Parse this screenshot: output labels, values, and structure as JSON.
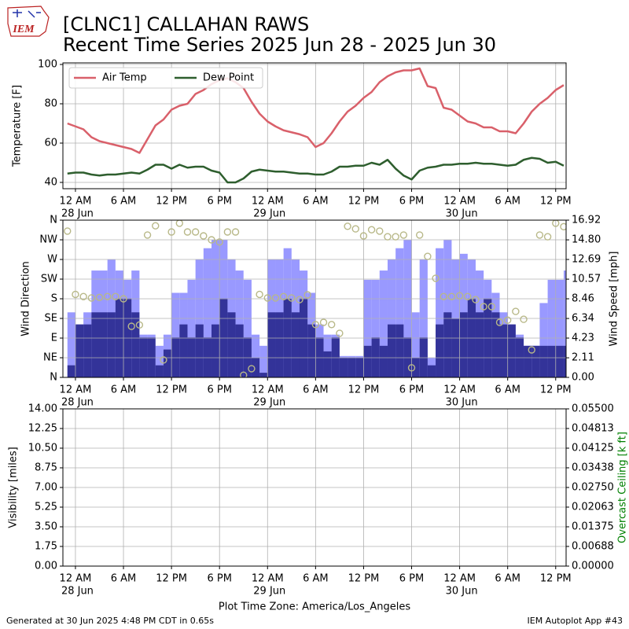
{
  "header": {
    "logo_text": "IEM",
    "title": "[CLNC1] CALLAHAN RAWS",
    "subtitle": "Recent Time Series 2025 Jun 28 - 2025 Jun 30"
  },
  "chart_data": [
    {
      "type": "line",
      "ylabel": "Temperature [F]",
      "grid": true,
      "legend": "upper left",
      "xlim": [
        "2025-06-27 22:26",
        "2025-06-30 13:18"
      ],
      "xticks": [
        {
          "value": "2025-06-28 00:00",
          "label": "12 AM"
        },
        {
          "value": "2025-06-28 06:00",
          "label": "6 AM"
        },
        {
          "value": "2025-06-28 12:00",
          "label": "12 PM"
        },
        {
          "value": "2025-06-28 18:00",
          "label": "6 PM"
        },
        {
          "value": "2025-06-29 00:00",
          "label": "12 AM"
        },
        {
          "value": "2025-06-29 06:00",
          "label": "6 AM"
        },
        {
          "value": "2025-06-29 12:00",
          "label": "12 PM"
        },
        {
          "value": "2025-06-29 18:00",
          "label": "6 PM"
        },
        {
          "value": "2025-06-30 00:00",
          "label": "12 AM"
        },
        {
          "value": "2025-06-30 06:00",
          "label": "6 AM"
        },
        {
          "value": "2025-06-30 12:00",
          "label": "12 PM"
        }
      ],
      "xtick_dates": [
        {
          "value": "2025-06-28 00:00",
          "label": "28 Jun"
        },
        {
          "value": "2025-06-29 00:00",
          "label": "29 Jun"
        },
        {
          "value": "2025-06-30 00:00",
          "label": "30 Jun"
        }
      ],
      "ylim": [
        36.8,
        100.8
      ],
      "yticks": [
        40,
        60,
        80,
        100
      ],
      "x": [
        "2025-06-27 23:00",
        "2025-06-28 00:00",
        "2025-06-28 01:00",
        "2025-06-28 02:00",
        "2025-06-28 03:00",
        "2025-06-28 04:00",
        "2025-06-28 05:00",
        "2025-06-28 06:00",
        "2025-06-28 07:00",
        "2025-06-28 08:00",
        "2025-06-28 09:00",
        "2025-06-28 10:00",
        "2025-06-28 11:00",
        "2025-06-28 12:00",
        "2025-06-28 13:00",
        "2025-06-28 14:00",
        "2025-06-28 15:00",
        "2025-06-28 16:00",
        "2025-06-28 17:00",
        "2025-06-28 18:00",
        "2025-06-28 19:00",
        "2025-06-28 20:00",
        "2025-06-28 21:00",
        "2025-06-28 22:00",
        "2025-06-28 23:00",
        "2025-06-29 00:00",
        "2025-06-29 01:00",
        "2025-06-29 02:00",
        "2025-06-29 03:00",
        "2025-06-29 04:00",
        "2025-06-29 05:00",
        "2025-06-29 06:00",
        "2025-06-29 07:00",
        "2025-06-29 08:00",
        "2025-06-29 09:00",
        "2025-06-29 10:00",
        "2025-06-29 11:00",
        "2025-06-29 12:00",
        "2025-06-29 13:00",
        "2025-06-29 14:00",
        "2025-06-29 15:00",
        "2025-06-29 16:00",
        "2025-06-29 17:00",
        "2025-06-29 18:00",
        "2025-06-29 19:00",
        "2025-06-29 20:00",
        "2025-06-29 21:00",
        "2025-06-29 22:00",
        "2025-06-29 23:00",
        "2025-06-30 00:00",
        "2025-06-30 01:00",
        "2025-06-30 02:00",
        "2025-06-30 03:00",
        "2025-06-30 04:00",
        "2025-06-30 05:00",
        "2025-06-30 06:00",
        "2025-06-30 07:00",
        "2025-06-30 08:00",
        "2025-06-30 09:00",
        "2025-06-30 10:00",
        "2025-06-30 11:00",
        "2025-06-30 12:00",
        "2025-06-30 13:00"
      ],
      "series": [
        {
          "name": "Air Temp",
          "color": "#d9606a",
          "values": [
            70,
            68.5,
            67,
            63,
            61,
            60,
            59,
            58,
            57,
            55,
            62,
            69,
            72,
            77,
            79,
            80,
            85,
            87,
            90,
            92,
            93,
            91,
            88,
            81,
            75,
            71,
            68.5,
            66.5,
            65.5,
            64.5,
            63,
            58,
            60,
            65,
            71,
            76,
            79,
            83,
            86,
            91,
            94,
            96,
            97,
            97,
            98,
            89,
            88,
            78,
            77,
            74,
            71,
            70,
            68,
            68,
            66,
            66,
            65,
            70,
            76,
            80,
            83,
            87,
            89.5
          ]
        },
        {
          "name": "Dew Point",
          "color": "#2e5e2e",
          "values": [
            44.5,
            45,
            45,
            44,
            43.5,
            44,
            44,
            44.5,
            45,
            44.5,
            46.5,
            49,
            49,
            47,
            49,
            47.5,
            48,
            48,
            46,
            45,
            40,
            40,
            42,
            45.5,
            46.5,
            46,
            45.5,
            45.5,
            45,
            44.5,
            44.5,
            44,
            44,
            45.5,
            48,
            48,
            48.5,
            48.5,
            50,
            49,
            51.5,
            47,
            43.5,
            41.5,
            46,
            47.5,
            48,
            49,
            49,
            49.5,
            49.5,
            50,
            49.5,
            49.5,
            49,
            48.5,
            49,
            51.5,
            52.5,
            52,
            50,
            50.5,
            48.5
          ]
        }
      ]
    },
    {
      "type": "bar",
      "ylabel": "Wind Direction",
      "y2label": "Wind Speed [mph]",
      "grid": true,
      "xlim": [
        "2025-06-27 22:26",
        "2025-06-30 13:18"
      ],
      "xticks": [
        {
          "value": "2025-06-28 00:00",
          "label": "12 AM"
        },
        {
          "value": "2025-06-28 06:00",
          "label": "6 AM"
        },
        {
          "value": "2025-06-28 12:00",
          "label": "12 PM"
        },
        {
          "value": "2025-06-28 18:00",
          "label": "6 PM"
        },
        {
          "value": "2025-06-29 00:00",
          "label": "12 AM"
        },
        {
          "value": "2025-06-29 06:00",
          "label": "6 AM"
        },
        {
          "value": "2025-06-29 12:00",
          "label": "12 PM"
        },
        {
          "value": "2025-06-29 18:00",
          "label": "6 PM"
        },
        {
          "value": "2025-06-30 00:00",
          "label": "12 AM"
        },
        {
          "value": "2025-06-30 06:00",
          "label": "6 AM"
        },
        {
          "value": "2025-06-30 12:00",
          "label": "12 PM"
        }
      ],
      "xtick_dates": [
        {
          "value": "2025-06-28 00:00",
          "label": "28 Jun"
        },
        {
          "value": "2025-06-29 00:00",
          "label": "29 Jun"
        },
        {
          "value": "2025-06-30 00:00",
          "label": "30 Jun"
        }
      ],
      "ylim": [
        0,
        360
      ],
      "yticks": [
        {
          "value": 0,
          "label": "N"
        },
        {
          "value": 45,
          "label": "NE"
        },
        {
          "value": 90,
          "label": "E"
        },
        {
          "value": 135,
          "label": "SE"
        },
        {
          "value": 180,
          "label": "S"
        },
        {
          "value": 225,
          "label": "SW"
        },
        {
          "value": 270,
          "label": "W"
        },
        {
          "value": 315,
          "label": "NW"
        },
        {
          "value": 360,
          "label": "N"
        }
      ],
      "y2lim": [
        0,
        16.92
      ],
      "y2ticks": [
        {
          "value": 0,
          "label": "0.00"
        },
        2.11,
        4.23,
        6.34,
        8.46,
        10.57,
        12.69,
        {
          "value": 14.8,
          "label": "14.80"
        },
        16.92
      ],
      "x": [
        "2025-06-27 23:00",
        "2025-06-28 00:00",
        "2025-06-28 01:00",
        "2025-06-28 02:00",
        "2025-06-28 03:00",
        "2025-06-28 04:00",
        "2025-06-28 05:00",
        "2025-06-28 06:00",
        "2025-06-28 07:00",
        "2025-06-28 08:00",
        "2025-06-28 09:00",
        "2025-06-28 10:00",
        "2025-06-28 11:00",
        "2025-06-28 12:00",
        "2025-06-28 13:00",
        "2025-06-28 14:00",
        "2025-06-28 15:00",
        "2025-06-28 16:00",
        "2025-06-28 17:00",
        "2025-06-28 18:00",
        "2025-06-28 19:00",
        "2025-06-28 20:00",
        "2025-06-28 21:00",
        "2025-06-28 22:00",
        "2025-06-28 23:00",
        "2025-06-29 00:00",
        "2025-06-29 01:00",
        "2025-06-29 02:00",
        "2025-06-29 03:00",
        "2025-06-29 04:00",
        "2025-06-29 05:00",
        "2025-06-29 06:00",
        "2025-06-29 07:00",
        "2025-06-29 08:00",
        "2025-06-29 09:00",
        "2025-06-29 10:00",
        "2025-06-29 11:00",
        "2025-06-29 12:00",
        "2025-06-29 13:00",
        "2025-06-29 14:00",
        "2025-06-29 15:00",
        "2025-06-29 16:00",
        "2025-06-29 17:00",
        "2025-06-29 18:00",
        "2025-06-29 19:00",
        "2025-06-29 20:00",
        "2025-06-29 21:00",
        "2025-06-29 22:00",
        "2025-06-29 23:00",
        "2025-06-30 00:00",
        "2025-06-30 01:00",
        "2025-06-30 02:00",
        "2025-06-30 03:00",
        "2025-06-30 04:00",
        "2025-06-30 05:00",
        "2025-06-30 06:00",
        "2025-06-30 07:00",
        "2025-06-30 08:00",
        "2025-06-30 09:00",
        "2025-06-30 10:00",
        "2025-06-30 11:00",
        "2025-06-30 12:00",
        "2025-06-30 13:00"
      ],
      "series": [
        {
          "type": "bar",
          "axis": "y2",
          "color": "#9999ff",
          "values": [
            7,
            5.7,
            7,
            11.5,
            11.5,
            12.7,
            11.5,
            10.5,
            11.5,
            4.6,
            4.6,
            3.4,
            4.6,
            9.1,
            9.1,
            10.5,
            12.7,
            13.9,
            14.8,
            14.8,
            12.7,
            11.5,
            10.5,
            4.6,
            3.4,
            12.7,
            12.7,
            13.9,
            12.7,
            11.5,
            9.1,
            5.7,
            4.6,
            4.6,
            2.3,
            2.3,
            2.3,
            10.5,
            10.5,
            11.5,
            12.7,
            13.9,
            14.8,
            7,
            12.7,
            2.1,
            13.9,
            14.8,
            12.7,
            13.3,
            12.7,
            11.5,
            10.5,
            9.1,
            7,
            5.7,
            4.6,
            3.4,
            3.4,
            8,
            10.5,
            10.5,
            11.5
          ]
        },
        {
          "type": "bar",
          "axis": "y2",
          "color": "#333399",
          "values": [
            1.3,
            5.7,
            5.7,
            7,
            7,
            7,
            8.5,
            8.5,
            7,
            4.3,
            4.3,
            1.3,
            3,
            4.3,
            5.7,
            4.3,
            5.7,
            4.3,
            5.7,
            8.5,
            7,
            5.7,
            4.3,
            2.1,
            0.5,
            7,
            7,
            8.5,
            7,
            8.5,
            5.7,
            4.3,
            2.8,
            4.3,
            2.1,
            2.1,
            2.1,
            3.4,
            4.3,
            3.4,
            5.7,
            5.7,
            4.3,
            2.1,
            4.3,
            1.3,
            5.7,
            7,
            6.3,
            7,
            8.5,
            7,
            8.5,
            7,
            5.7,
            5.7,
            4.3,
            3.4,
            3.4,
            3.4,
            3.4,
            3.4,
            3.4
          ]
        },
        {
          "type": "scatter",
          "color": "#b8b888",
          "values": [
            335,
            190,
            185,
            182,
            183,
            185,
            185,
            180,
            117,
            120,
            326,
            347,
            40,
            333,
            353,
            333,
            333,
            324,
            315,
            310,
            333,
            333,
            5,
            20,
            190,
            182,
            182,
            185,
            182,
            178,
            189,
            121,
            126,
            121,
            101,
            346,
            340,
            324,
            338,
            335,
            322,
            322,
            326,
            22,
            326,
            277,
            227,
            185,
            185,
            187,
            185,
            178,
            162,
            162,
            126,
            131,
            151,
            133,
            63,
            326,
            322,
            353,
            345
          ]
        }
      ]
    },
    {
      "type": "line",
      "ylabel": "Visibility [miles]",
      "y2label": "Overcast Ceiling [k ft]",
      "y2label_color": "#008000",
      "grid": true,
      "xlim": [
        "2025-06-27 22:26",
        "2025-06-30 13:18"
      ],
      "xticks": [
        {
          "value": "2025-06-28 00:00",
          "label": "12 AM"
        },
        {
          "value": "2025-06-28 06:00",
          "label": "6 AM"
        },
        {
          "value": "2025-06-28 12:00",
          "label": "12 PM"
        },
        {
          "value": "2025-06-28 18:00",
          "label": "6 PM"
        },
        {
          "value": "2025-06-29 00:00",
          "label": "12 AM"
        },
        {
          "value": "2025-06-29 06:00",
          "label": "6 AM"
        },
        {
          "value": "2025-06-29 12:00",
          "label": "12 PM"
        },
        {
          "value": "2025-06-29 18:00",
          "label": "6 PM"
        },
        {
          "value": "2025-06-30 00:00",
          "label": "12 AM"
        },
        {
          "value": "2025-06-30 06:00",
          "label": "6 AM"
        },
        {
          "value": "2025-06-30 12:00",
          "label": "12 PM"
        }
      ],
      "xtick_dates": [
        {
          "value": "2025-06-28 00:00",
          "label": "28 Jun"
        },
        {
          "value": "2025-06-29 00:00",
          "label": "29 Jun"
        },
        {
          "value": "2025-06-30 00:00",
          "label": "30 Jun"
        }
      ],
      "ylim": [
        0,
        14
      ],
      "yticks": [
        {
          "value": 0,
          "label": "0.00"
        },
        1.75,
        {
          "value": 3.5,
          "label": "3.50"
        },
        5.25,
        {
          "value": 7,
          "label": "7.00"
        },
        8.75,
        {
          "value": 10.5,
          "label": "10.50"
        },
        12.25,
        {
          "value": 14,
          "label": "14.00"
        }
      ],
      "y2lim": [
        0,
        0.055
      ],
      "y2ticks": [
        {
          "value": 0,
          "label": "0.00000"
        },
        0.00688,
        0.01375,
        0.02063,
        {
          "value": 0.0275,
          "label": "0.02750"
        },
        0.03438,
        0.04125,
        0.04813,
        {
          "value": 0.055,
          "label": "0.05500"
        }
      ],
      "xlabel": "Plot Time Zone: America/Los_Angeles",
      "series": []
    }
  ],
  "footer": {
    "generated": "Generated at 30 Jun 2025 4:48 PM CDT in 0.65s",
    "app": "IEM Autoplot App #43"
  }
}
